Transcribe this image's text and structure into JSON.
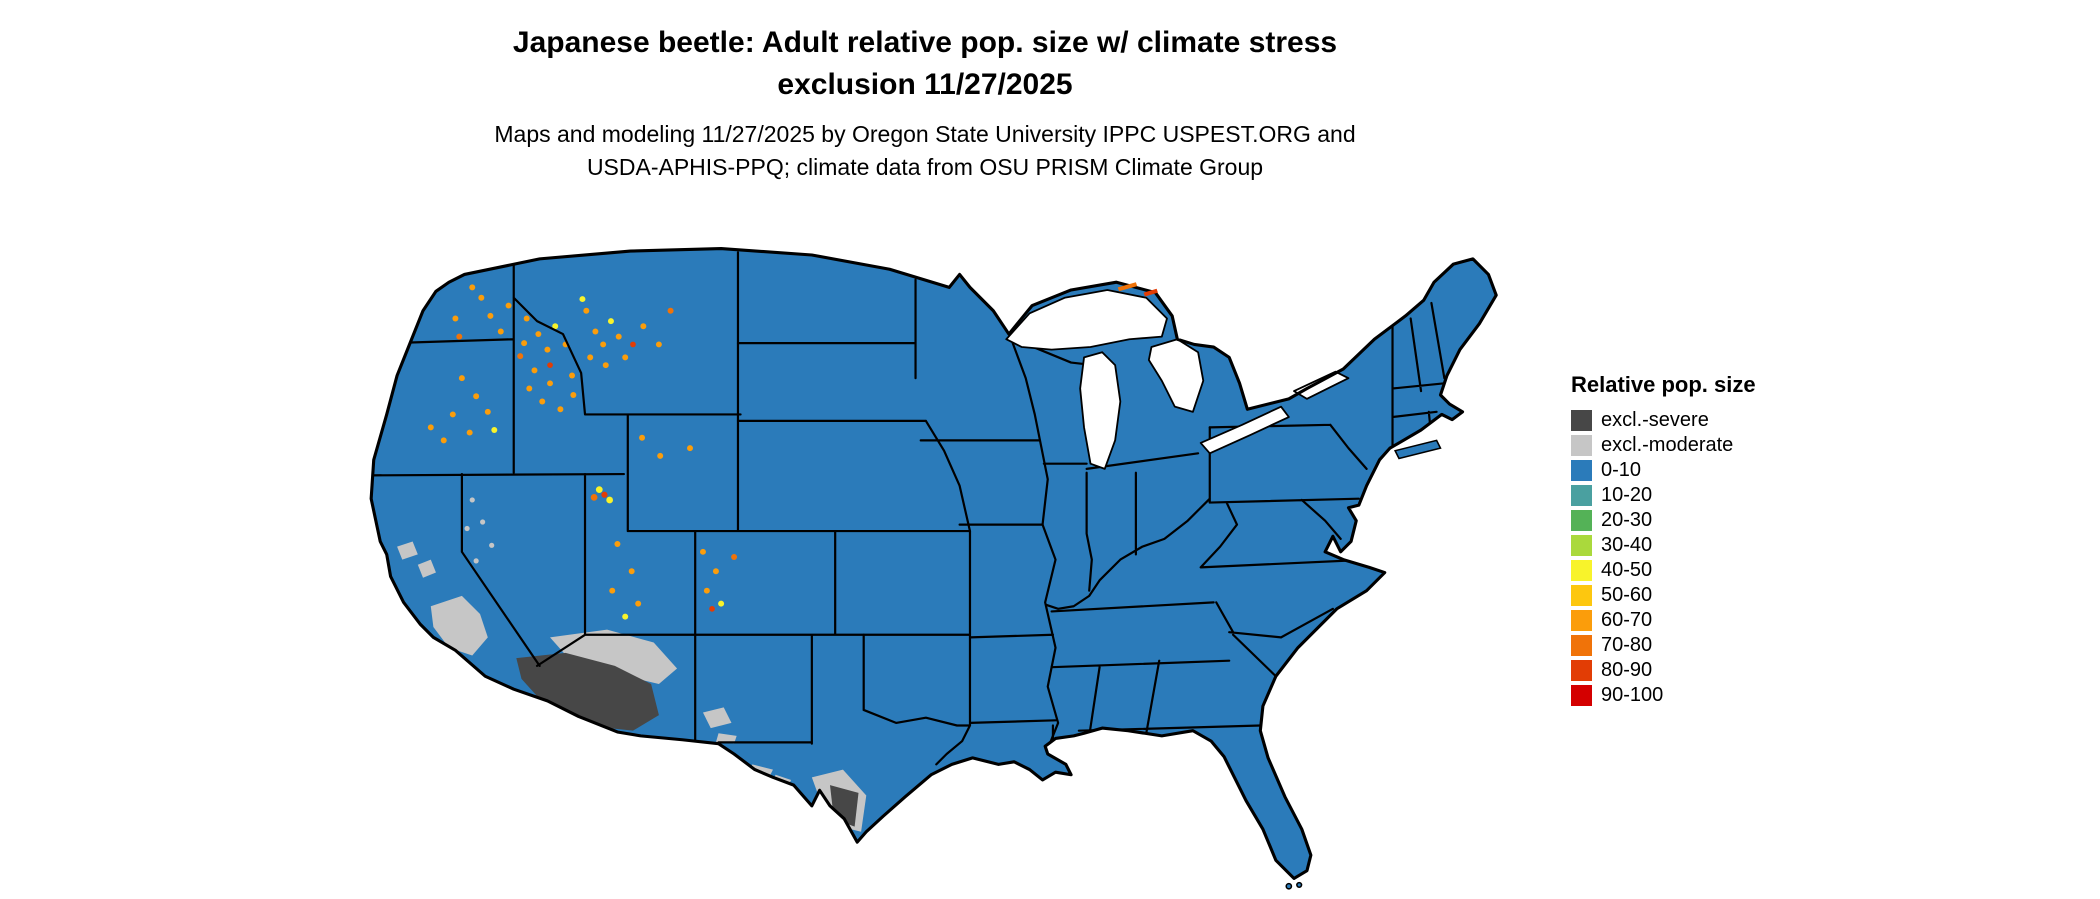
{
  "title": {
    "line1": "Japanese beetle: Adult relative pop. size w/ climate stress",
    "line2": "exclusion 11/27/2025"
  },
  "subtitle": {
    "line1": "Maps and modeling 11/27/2025 by Oregon State University IPPC USPEST.ORG and",
    "line2": "USDA-APHIS-PPQ; climate data from OSU PRISM Climate Group"
  },
  "map": {
    "base_color": "#2b7bba",
    "border_color": "#000000",
    "water_color": "#ffffff"
  },
  "legend": {
    "title": "Relative pop. size",
    "items": [
      {
        "label": "excl.-severe",
        "color": "#474747"
      },
      {
        "label": "excl.-moderate",
        "color": "#c6c6c6"
      },
      {
        "label": "0-10",
        "color": "#2b7bba"
      },
      {
        "label": "10-20",
        "color": "#4aa0a0"
      },
      {
        "label": "20-30",
        "color": "#54b257"
      },
      {
        "label": "30-40",
        "color": "#aad93c"
      },
      {
        "label": "40-50",
        "color": "#f8f32b"
      },
      {
        "label": "50-60",
        "color": "#fdc70f"
      },
      {
        "label": "60-70",
        "color": "#fb9d0b"
      },
      {
        "label": "70-80",
        "color": "#f07309"
      },
      {
        "label": "80-90",
        "color": "#e23d05"
      },
      {
        "label": "90-100",
        "color": "#d40000"
      }
    ]
  }
}
